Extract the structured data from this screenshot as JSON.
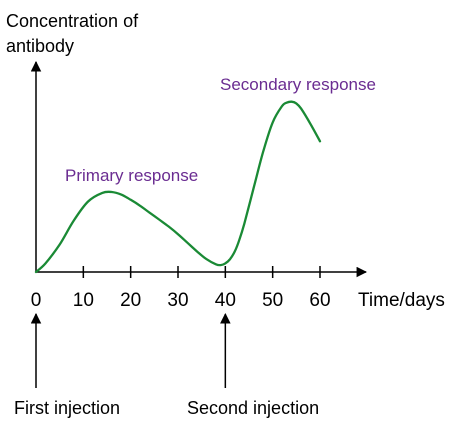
{
  "chart_data": {
    "type": "line",
    "ylabel_line1": "Concentration of",
    "ylabel_line2": "antibody",
    "xlabel": "Time/days",
    "x_ticks": [
      0,
      10,
      20,
      30,
      40,
      50,
      60
    ],
    "xlim": [
      0,
      60
    ],
    "ylim": [
      0,
      1
    ],
    "grid": false,
    "series": [
      {
        "x": [
          0,
          2,
          5,
          8,
          11,
          14,
          16,
          18,
          20,
          22,
          24,
          26,
          28,
          30,
          32,
          34,
          36,
          38,
          39,
          40,
          41,
          42,
          43,
          44,
          46,
          48,
          50,
          52,
          53,
          54,
          55,
          56,
          58,
          60
        ],
        "y": [
          0.0,
          0.05,
          0.16,
          0.3,
          0.41,
          0.46,
          0.465,
          0.45,
          0.42,
          0.385,
          0.345,
          0.305,
          0.265,
          0.22,
          0.17,
          0.12,
          0.075,
          0.045,
          0.04,
          0.05,
          0.075,
          0.12,
          0.19,
          0.28,
          0.49,
          0.7,
          0.87,
          0.965,
          0.985,
          0.99,
          0.98,
          0.95,
          0.86,
          0.76
        ]
      }
    ],
    "annotations": {
      "primary": "Primary response",
      "secondary": "Secondary response",
      "first_injection": "First injection",
      "second_injection": "Second injection"
    },
    "injection_days": {
      "first": 0,
      "second": 40
    },
    "colors": {
      "curve": "#1a8a35",
      "annotation": "#6a2c91",
      "axis": "#000000"
    }
  }
}
